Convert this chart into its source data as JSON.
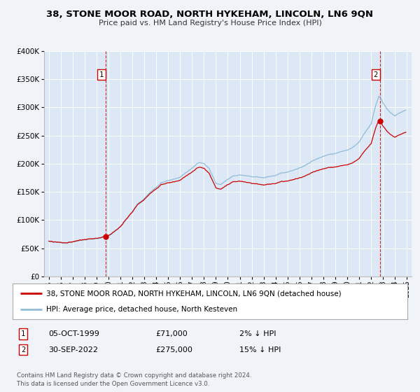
{
  "title": "38, STONE MOOR ROAD, NORTH HYKEHAM, LINCOLN, LN6 9QN",
  "subtitle": "Price paid vs. HM Land Registry's House Price Index (HPI)",
  "legend_line1": "38, STONE MOOR ROAD, NORTH HYKEHAM, LINCOLN, LN6 9QN (detached house)",
  "legend_line2": "HPI: Average price, detached house, North Kesteven",
  "sale1_label": "1",
  "sale1_date": "05-OCT-1999",
  "sale1_price": "£71,000",
  "sale1_hpi": "2% ↓ HPI",
  "sale1_t": 1999.75,
  "sale1_val": 71000,
  "sale2_label": "2",
  "sale2_date": "30-SEP-2022",
  "sale2_price": "£275,000",
  "sale2_hpi": "15% ↓ HPI",
  "sale2_t": 2022.75,
  "sale2_val": 275000,
  "footer1": "Contains HM Land Registry data © Crown copyright and database right 2024.",
  "footer2": "This data is licensed under the Open Government Licence v3.0.",
  "bg_color": "#f0f4f8",
  "plot_bg_color": "#dce8f5",
  "red_color": "#cc0000",
  "blue_color": "#90bcd8",
  "grid_color": "#ffffff",
  "ylim": [
    0,
    400000
  ],
  "yticks": [
    0,
    50000,
    100000,
    150000,
    200000,
    250000,
    300000,
    350000,
    400000
  ],
  "xlim_start": 1994.6,
  "xlim_end": 2025.4,
  "xticks": [
    1995,
    1996,
    1997,
    1998,
    1999,
    2000,
    2001,
    2002,
    2003,
    2004,
    2005,
    2006,
    2007,
    2008,
    2009,
    2010,
    2011,
    2012,
    2013,
    2014,
    2015,
    2016,
    2017,
    2018,
    2019,
    2020,
    2021,
    2022,
    2023,
    2024,
    2025
  ]
}
